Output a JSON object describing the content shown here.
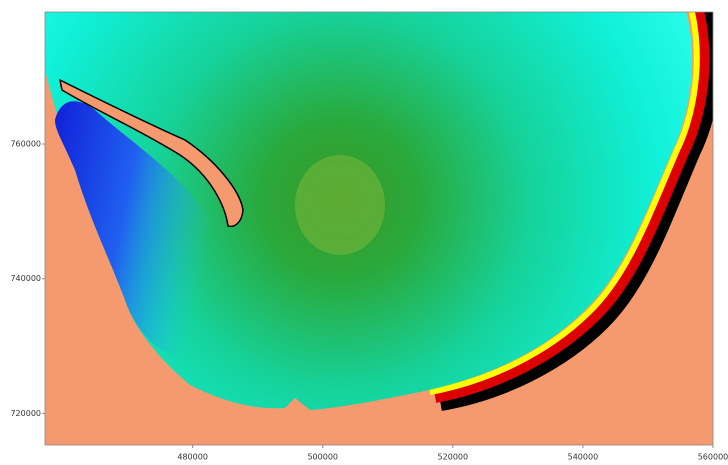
{
  "map_data": {
    "type": "heatmap",
    "xlim": [
      457300,
      560000
    ],
    "ylim": [
      715300,
      779600
    ],
    "xticks": [
      480000,
      500000,
      520000,
      540000,
      560000
    ],
    "yticks": [
      720000,
      740000,
      760000
    ]
  }
}
